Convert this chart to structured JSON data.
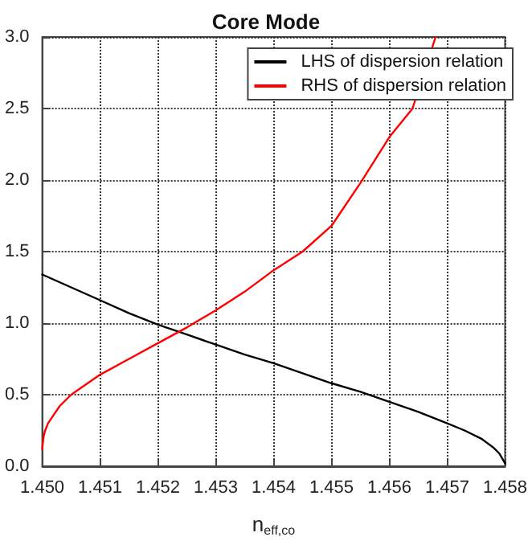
{
  "chart_data": {
    "type": "line",
    "title": "Core Mode",
    "xlabel": "n$_{eff,co}$",
    "series": [
      {
        "name": "LHS of dispersion relation",
        "color": "#000000",
        "x": [
          1.45,
          1.4505,
          1.451,
          1.4515,
          1.452,
          1.4525,
          1.453,
          1.4535,
          1.454,
          1.4545,
          1.455,
          1.4555,
          1.456,
          1.4565,
          1.457,
          1.4573,
          1.4576,
          1.4578,
          1.4579,
          1.458
        ],
        "values": [
          1.34,
          1.25,
          1.16,
          1.07,
          0.99,
          0.92,
          0.85,
          0.78,
          0.72,
          0.65,
          0.58,
          0.52,
          0.45,
          0.38,
          0.3,
          0.25,
          0.19,
          0.13,
          0.09,
          0.02
        ]
      },
      {
        "name": "RHS of dispersion relation",
        "color": "#ff0000",
        "x": [
          1.45,
          1.45002,
          1.45005,
          1.4501,
          1.4502,
          1.4503,
          1.4505,
          1.451,
          1.4515,
          1.452,
          1.4525,
          1.453,
          1.4535,
          1.454,
          1.4545,
          1.455,
          1.4555,
          1.456,
          1.4564,
          1.4568
        ],
        "values": [
          0.12,
          0.2,
          0.25,
          0.3,
          0.36,
          0.42,
          0.5,
          0.64,
          0.75,
          0.86,
          0.97,
          1.09,
          1.22,
          1.37,
          1.5,
          1.68,
          1.98,
          2.3,
          2.5,
          3.0
        ]
      }
    ],
    "xlim": [
      1.45,
      1.458
    ],
    "xticks": [
      {
        "value": 1.45,
        "label": "1.450"
      },
      1.451,
      1.452,
      1.453,
      1.454,
      1.455,
      1.456,
      1.457,
      {
        "value": 1.458,
        "label": "1.458"
      }
    ],
    "ylim": [
      0,
      3
    ],
    "yticks": [
      {
        "value": 0,
        "label": "0.0"
      },
      0.5,
      {
        "value": 1,
        "label": "1.0"
      },
      1.5,
      {
        "value": 2,
        "label": "2.0"
      },
      2.5,
      {
        "value": 3,
        "label": "3.0"
      }
    ],
    "grid": true,
    "legend": "top right",
    "marker": "none",
    "line_style": "solid"
  }
}
